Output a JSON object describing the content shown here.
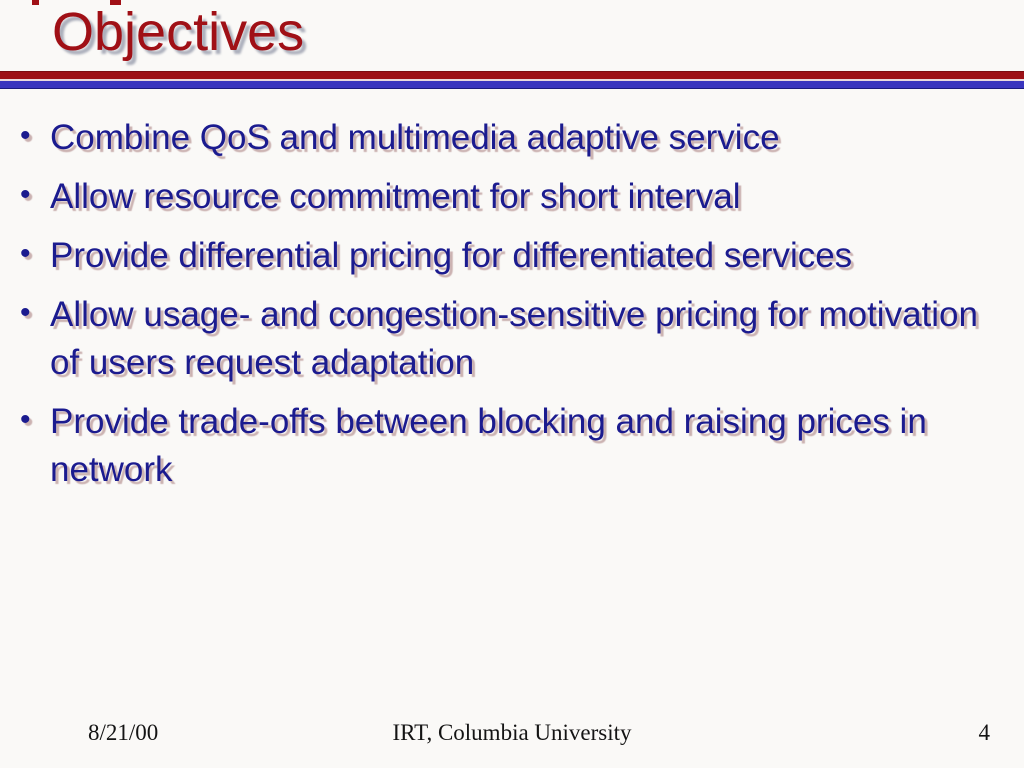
{
  "slide": {
    "title": "Objectives",
    "bullet_char": "•",
    "bullets": [
      {
        "text": "Combine QoS and multimedia adaptive service"
      },
      {
        "text": "Allow resource commitment for short interval"
      },
      {
        "text": "Provide differential pricing for differentiated services"
      },
      {
        "text": "Allow usage- and congestion-sensitive pricing for motivation of users request adaptation"
      },
      {
        "text": "Provide trade-offs between blocking and raising prices in network"
      }
    ]
  },
  "footer": {
    "date": "8/21/00",
    "center": "IRT, Columbia University",
    "page_number": "4"
  },
  "colors": {
    "background": "#faf9f7",
    "title_red": "#a01016",
    "body_navy": "#1b1b8f",
    "divider_red": "#9d1117",
    "divider_blue": "#3a35be",
    "footer_text": "#141414"
  }
}
